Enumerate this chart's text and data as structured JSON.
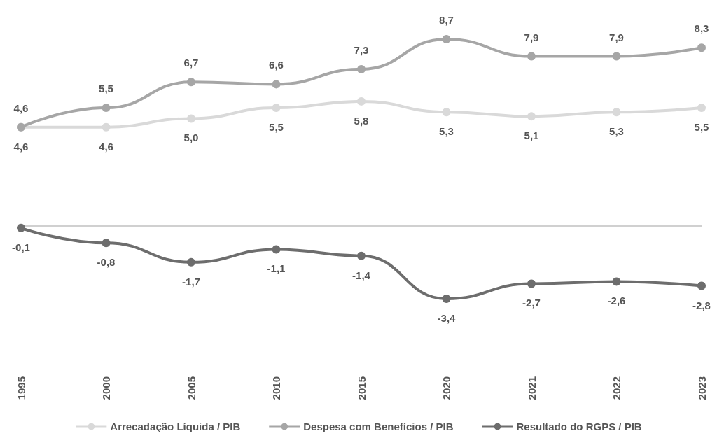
{
  "chart_data": {
    "type": "line",
    "categories": [
      "1995",
      "2000",
      "2005",
      "2010",
      "2015",
      "2020",
      "2021",
      "2022",
      "2023"
    ],
    "series": [
      {
        "name": "Arrecadação Líquida / PIB",
        "color": "#d9d9d9",
        "values": [
          4.6,
          4.6,
          5.0,
          5.5,
          5.8,
          5.3,
          5.1,
          5.3,
          5.5
        ],
        "value_labels": [
          "4,6",
          "4,6",
          "5,0",
          "5,5",
          "5,8",
          "5,3",
          "5,1",
          "5,3",
          "5,5"
        ]
      },
      {
        "name": "Despesa com Benefícios / PIB",
        "color": "#a6a6a6",
        "values": [
          4.6,
          5.5,
          6.7,
          6.6,
          7.3,
          8.7,
          7.9,
          7.9,
          8.3
        ],
        "value_labels": [
          "4,6",
          "5,5",
          "6,7",
          "6,6",
          "7,3",
          "8,7",
          "7,9",
          "7,9",
          "8,3"
        ]
      },
      {
        "name": "Resultado do RGPS / PIB",
        "color": "#6d6d6d",
        "values": [
          -0.1,
          -0.8,
          -1.7,
          -1.1,
          -1.4,
          -3.4,
          -2.7,
          -2.6,
          -2.8
        ],
        "value_labels": [
          "-0,1",
          "-0,8",
          "-1,7",
          "-1,1",
          "-1,4",
          "-3,4",
          "-2,7",
          "-2,6",
          "-2,8"
        ]
      }
    ],
    "ref_lines": [
      {
        "axis": "y",
        "value": 0,
        "color": "#d0d0d0"
      }
    ],
    "grid": false,
    "legend": "bottom",
    "marker": "circle",
    "line_style": "solid"
  }
}
